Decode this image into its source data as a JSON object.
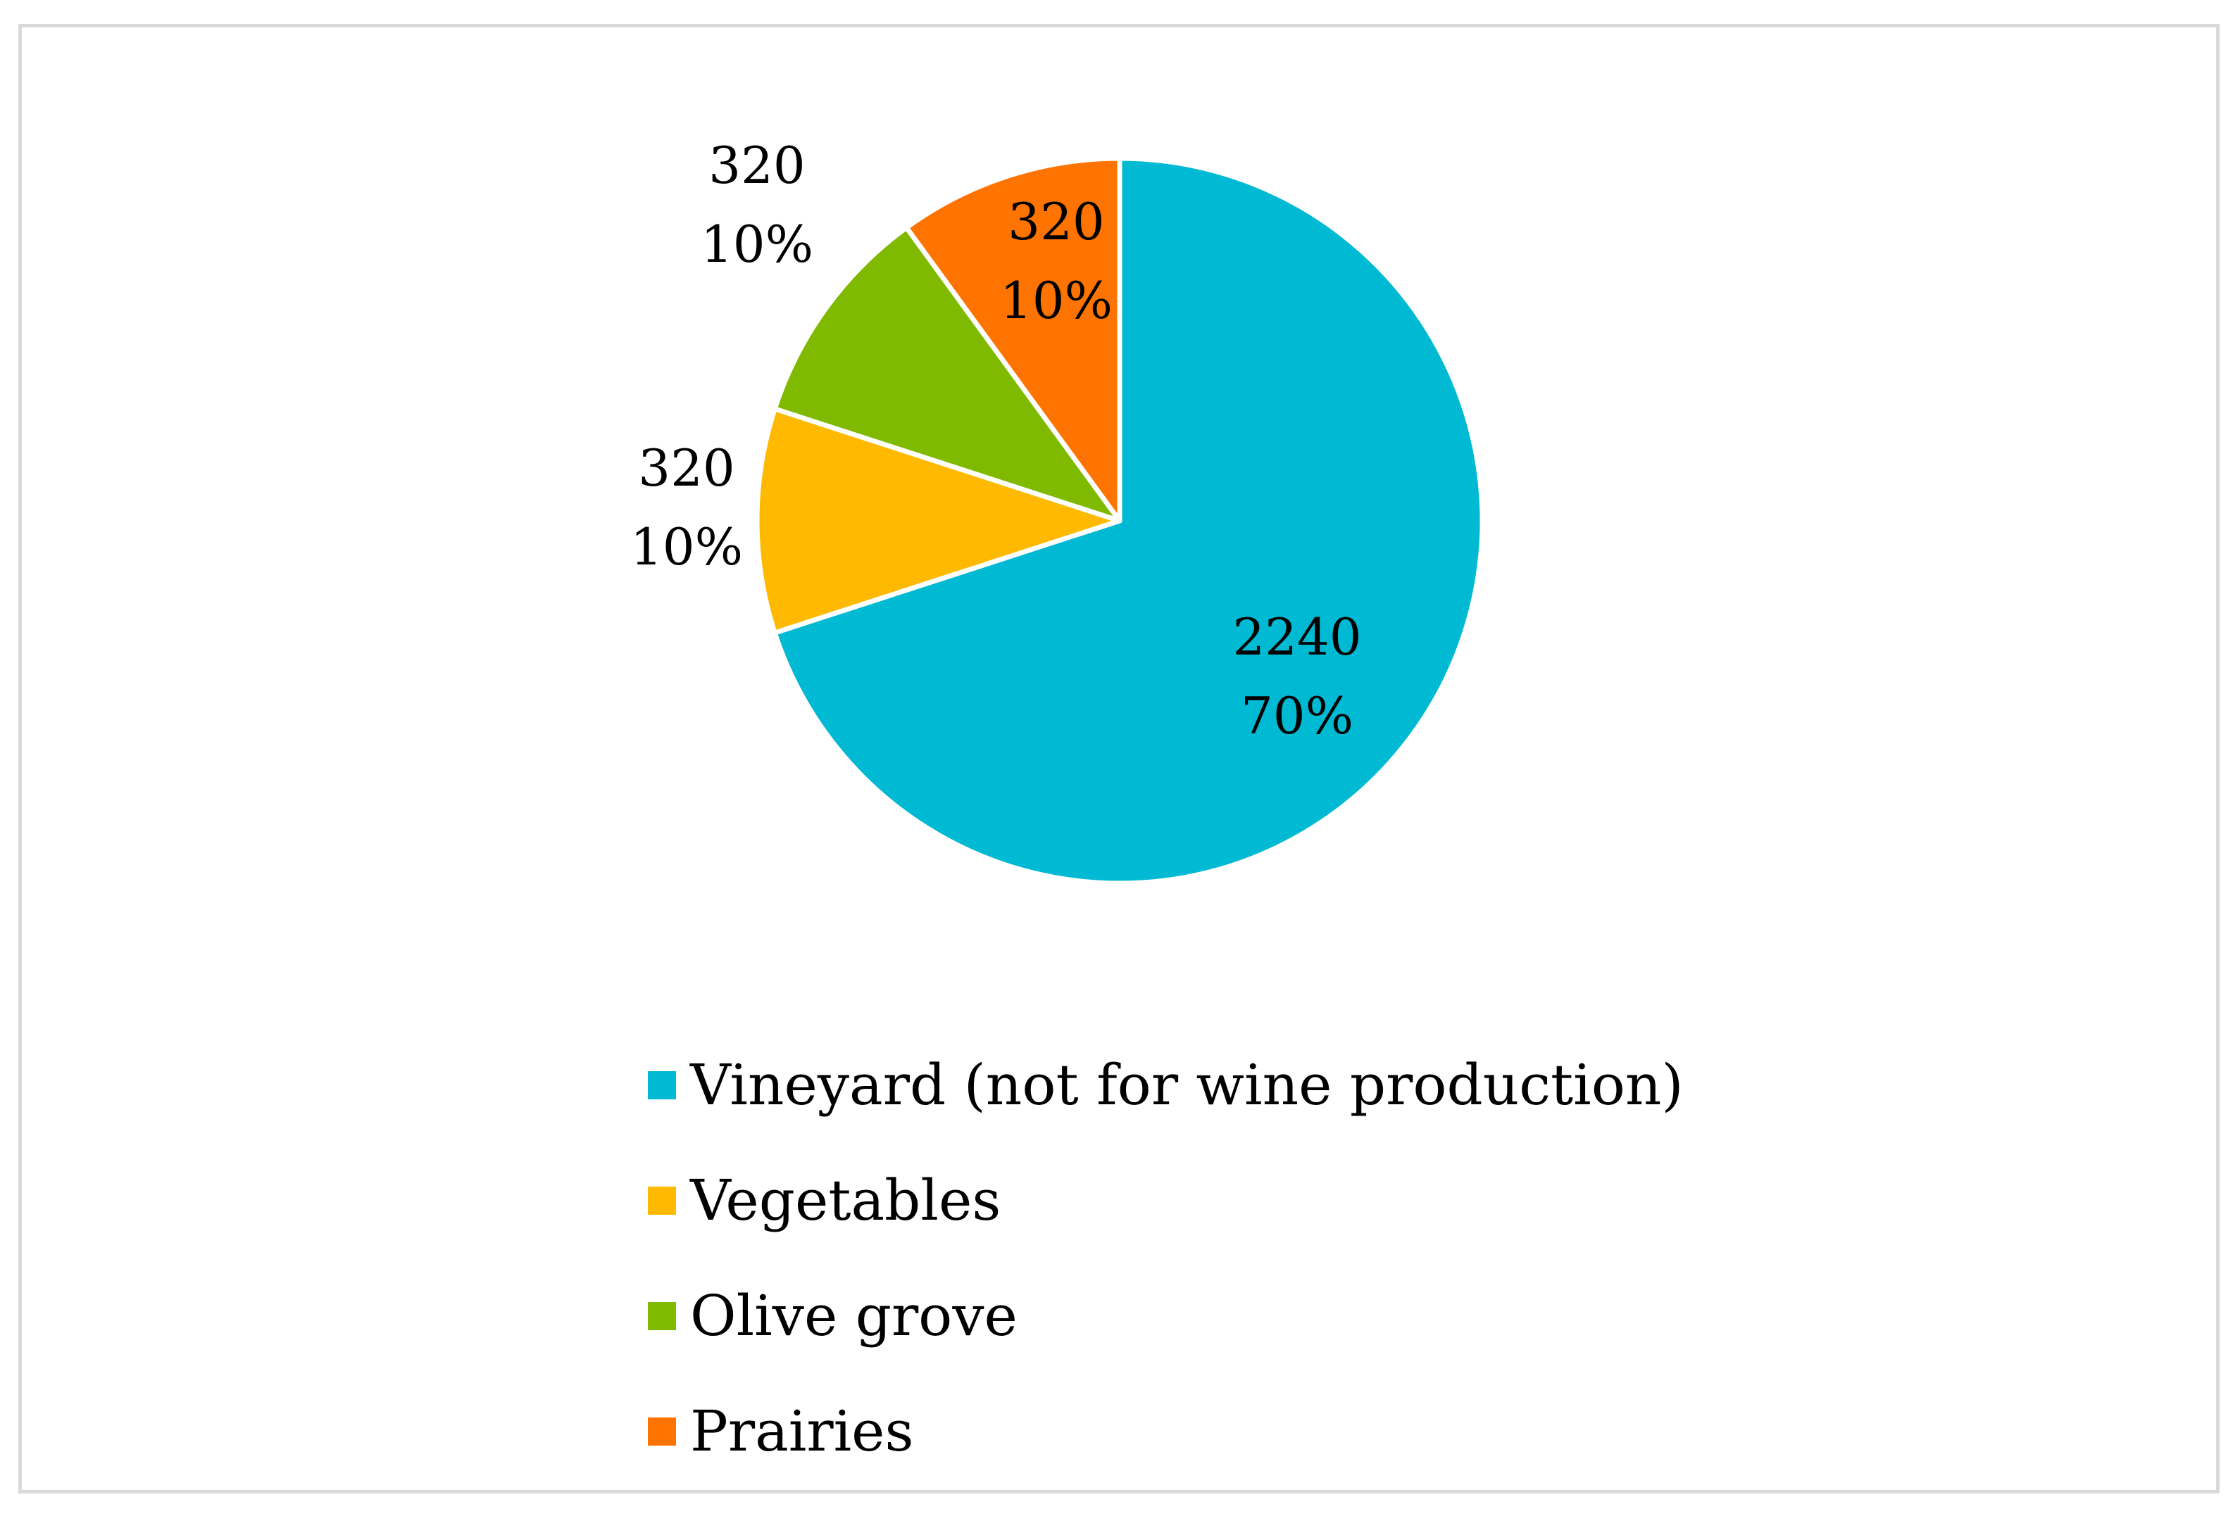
{
  "chart_data": {
    "type": "pie",
    "slices": [
      {
        "name": "Vineyard (not for wine production)",
        "value": 2240,
        "percent": "70%",
        "color": "#00B9D3"
      },
      {
        "name": "Vegetables",
        "value": 320,
        "percent": "10%",
        "color": "#FFB900"
      },
      {
        "name": "Olive grove",
        "value": 320,
        "percent": "10%",
        "color": "#7FBA00"
      },
      {
        "name": "Prairies",
        "value": 320,
        "percent": "10%",
        "color": "#FF7300"
      }
    ],
    "legend_position": "bottom",
    "data_labels": "value and percent"
  }
}
